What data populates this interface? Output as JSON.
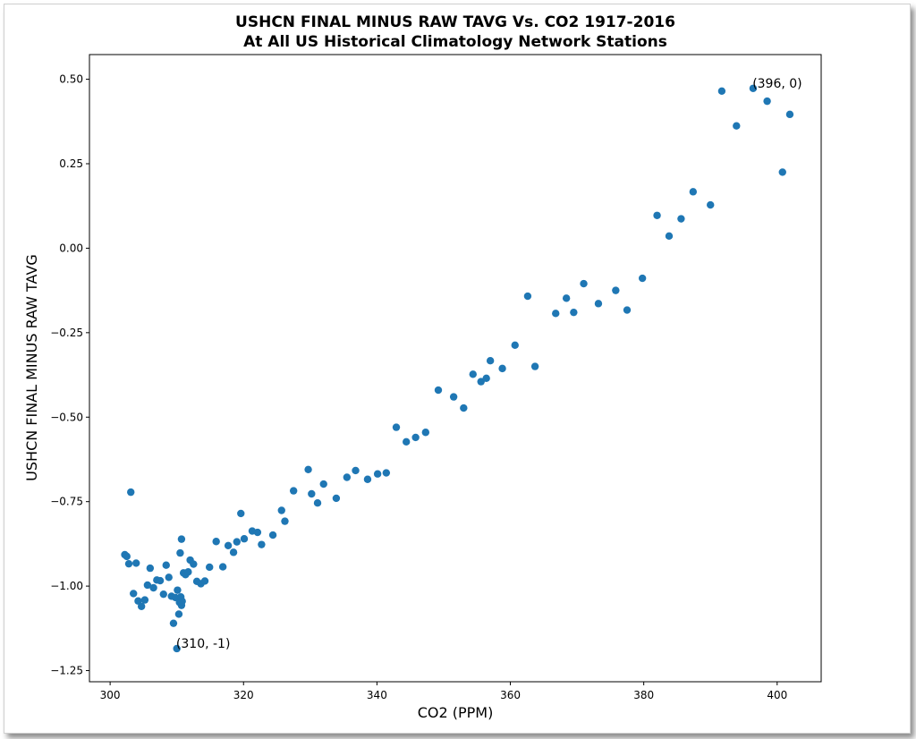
{
  "chart_data": {
    "type": "scatter",
    "title": "USHCN FINAL MINUS RAW TAVG Vs. CO2 1917-2016",
    "subtitle": "At All US Historical Climatology Network Stations",
    "xlabel": "CO2 (PPM)",
    "ylabel": "USHCN FINAL MINUS RAW TAVG",
    "xlim": [
      296.9,
      406.6
    ],
    "ylim": [
      -1.283,
      0.573
    ],
    "x_ticks": [
      300,
      320,
      340,
      360,
      380,
      400
    ],
    "x_tick_labels": [
      "300",
      "320",
      "340",
      "360",
      "380",
      "400"
    ],
    "y_ticks": [
      -1.25,
      -1.0,
      -0.75,
      -0.5,
      -0.25,
      0.0,
      0.25,
      0.5
    ],
    "y_tick_labels": [
      "−1.25",
      "−1.00",
      "−0.75",
      "−0.50",
      "−0.25",
      "0.00",
      "0.25",
      "0.50"
    ],
    "grid": false,
    "marker_color": "#1f77b4",
    "points": [
      [
        302.2,
        -0.907
      ],
      [
        302.5,
        -0.912
      ],
      [
        302.8,
        -0.934
      ],
      [
        303.1,
        -0.722
      ],
      [
        303.5,
        -1.022
      ],
      [
        303.9,
        -0.932
      ],
      [
        304.2,
        -1.044
      ],
      [
        304.7,
        -1.06
      ],
      [
        305.2,
        -1.041
      ],
      [
        305.6,
        -0.997
      ],
      [
        306.0,
        -0.947
      ],
      [
        306.5,
        -1.005
      ],
      [
        307.0,
        -0.982
      ],
      [
        307.5,
        -0.984
      ],
      [
        308.0,
        -1.024
      ],
      [
        308.4,
        -0.938
      ],
      [
        308.8,
        -0.974
      ],
      [
        309.2,
        -1.03
      ],
      [
        309.5,
        -1.11
      ],
      [
        309.8,
        -1.034
      ],
      [
        310.0,
        -1.185
      ],
      [
        310.1,
        -1.012
      ],
      [
        310.3,
        -1.083
      ],
      [
        310.4,
        -1.048
      ],
      [
        310.5,
        -0.902
      ],
      [
        310.6,
        -1.032
      ],
      [
        310.7,
        -1.057
      ],
      [
        310.7,
        -0.861
      ],
      [
        310.8,
        -1.045
      ],
      [
        311.0,
        -0.961
      ],
      [
        311.3,
        -0.966
      ],
      [
        311.7,
        -0.958
      ],
      [
        312.0,
        -0.923
      ],
      [
        312.5,
        -0.935
      ],
      [
        313.0,
        -0.986
      ],
      [
        313.6,
        -0.993
      ],
      [
        314.2,
        -0.985
      ],
      [
        314.9,
        -0.944
      ],
      [
        315.9,
        -0.868
      ],
      [
        316.9,
        -0.943
      ],
      [
        317.7,
        -0.88
      ],
      [
        318.5,
        -0.9
      ],
      [
        319.0,
        -0.869
      ],
      [
        319.6,
        -0.785
      ],
      [
        320.1,
        -0.86
      ],
      [
        321.3,
        -0.837
      ],
      [
        322.1,
        -0.841
      ],
      [
        322.7,
        -0.877
      ],
      [
        324.4,
        -0.849
      ],
      [
        325.7,
        -0.776
      ],
      [
        326.2,
        -0.808
      ],
      [
        327.5,
        -0.718
      ],
      [
        329.7,
        -0.655
      ],
      [
        330.2,
        -0.727
      ],
      [
        331.1,
        -0.754
      ],
      [
        332.0,
        -0.698
      ],
      [
        333.9,
        -0.74
      ],
      [
        335.5,
        -0.678
      ],
      [
        336.8,
        -0.658
      ],
      [
        338.6,
        -0.684
      ],
      [
        340.1,
        -0.668
      ],
      [
        341.4,
        -0.665
      ],
      [
        342.9,
        -0.53
      ],
      [
        344.4,
        -0.573
      ],
      [
        345.8,
        -0.56
      ],
      [
        347.3,
        -0.545
      ],
      [
        349.2,
        -0.42
      ],
      [
        351.5,
        -0.44
      ],
      [
        353.0,
        -0.473
      ],
      [
        354.4,
        -0.373
      ],
      [
        355.6,
        -0.395
      ],
      [
        356.4,
        -0.385
      ],
      [
        357.0,
        -0.333
      ],
      [
        358.8,
        -0.356
      ],
      [
        360.7,
        -0.287
      ],
      [
        362.6,
        -0.142
      ],
      [
        363.7,
        -0.35
      ],
      [
        366.8,
        -0.193
      ],
      [
        368.4,
        -0.148
      ],
      [
        369.5,
        -0.19
      ],
      [
        371.0,
        -0.105
      ],
      [
        373.2,
        -0.164
      ],
      [
        375.8,
        -0.125
      ],
      [
        377.5,
        -0.183
      ],
      [
        379.8,
        -0.089
      ],
      [
        382.0,
        0.097
      ],
      [
        383.8,
        0.036
      ],
      [
        385.6,
        0.087
      ],
      [
        387.4,
        0.167
      ],
      [
        390.0,
        0.128
      ],
      [
        391.7,
        0.465
      ],
      [
        393.9,
        0.362
      ],
      [
        396.4,
        0.473
      ],
      [
        398.5,
        0.435
      ],
      [
        400.8,
        0.225
      ],
      [
        401.9,
        0.396
      ]
    ],
    "annotations": [
      {
        "text": "(396, 0)",
        "x": 396.3,
        "y": 0.475
      },
      {
        "text": "(310, -1)",
        "x": 309.9,
        "y": -1.183
      }
    ]
  }
}
